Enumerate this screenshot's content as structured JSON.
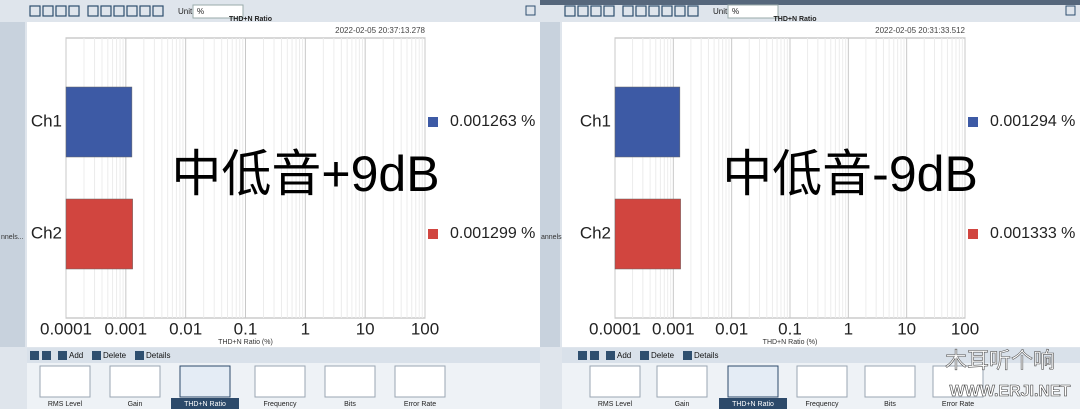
{
  "chart_data": [
    {
      "type": "bar",
      "orientation": "horizontal",
      "title": "THD+N Ratio",
      "timestamp": "2022-02-05 20:37:13.278",
      "annotation": "中低音+9dB",
      "categories": [
        "Ch1",
        "Ch2"
      ],
      "values": [
        0.001263,
        0.001299
      ],
      "value_labels": [
        "0.001263 %",
        "0.001299 %"
      ],
      "colors": [
        "#3d5aa5",
        "#d1453f"
      ],
      "xlabel": "THD+N Ratio (%)",
      "xscale": "log",
      "xlim": [
        0.0001,
        100
      ],
      "xticks": [
        0.0001,
        0.001,
        0.01,
        0.1,
        1,
        10,
        100
      ],
      "grid": true,
      "legend": "right"
    },
    {
      "type": "bar",
      "orientation": "horizontal",
      "title": "THD+N Ratio",
      "timestamp": "2022-02-05 20:31:33.512",
      "annotation": "中低音-9dB",
      "categories": [
        "Ch1",
        "Ch2"
      ],
      "values": [
        0.001294,
        0.001333
      ],
      "value_labels": [
        "0.001294 %",
        "0.001333 %"
      ],
      "colors": [
        "#3d5aa5",
        "#d1453f"
      ],
      "xlabel": "THD+N Ratio (%)",
      "xscale": "log",
      "xlim": [
        0.0001,
        100
      ],
      "xticks": [
        0.0001,
        0.001,
        0.01,
        0.1,
        1,
        10,
        100
      ],
      "grid": true,
      "legend": "right"
    }
  ],
  "ui": {
    "panels": [
      {
        "unit_label": "Unit",
        "unit_value": "%",
        "side_tab": "nnels...",
        "toolbar": [
          "Add",
          "Delete",
          "Details"
        ],
        "thumbnails": [
          "RMS Level",
          "Gain",
          "THD+N Ratio",
          "Frequency",
          "Bits",
          "Error Rate"
        ]
      },
      {
        "unit_label": "Unit",
        "unit_value": "%",
        "side_tab": "annels...",
        "toolbar": [
          "Add",
          "Delete",
          "Details"
        ],
        "thumbnails": [
          "RMS Level",
          "Gain",
          "THD+N Ratio",
          "Frequency",
          "Bits",
          "Error Rate"
        ]
      }
    ],
    "watermark": [
      "木耳听个响",
      "WWW.ERJI.NET"
    ]
  }
}
